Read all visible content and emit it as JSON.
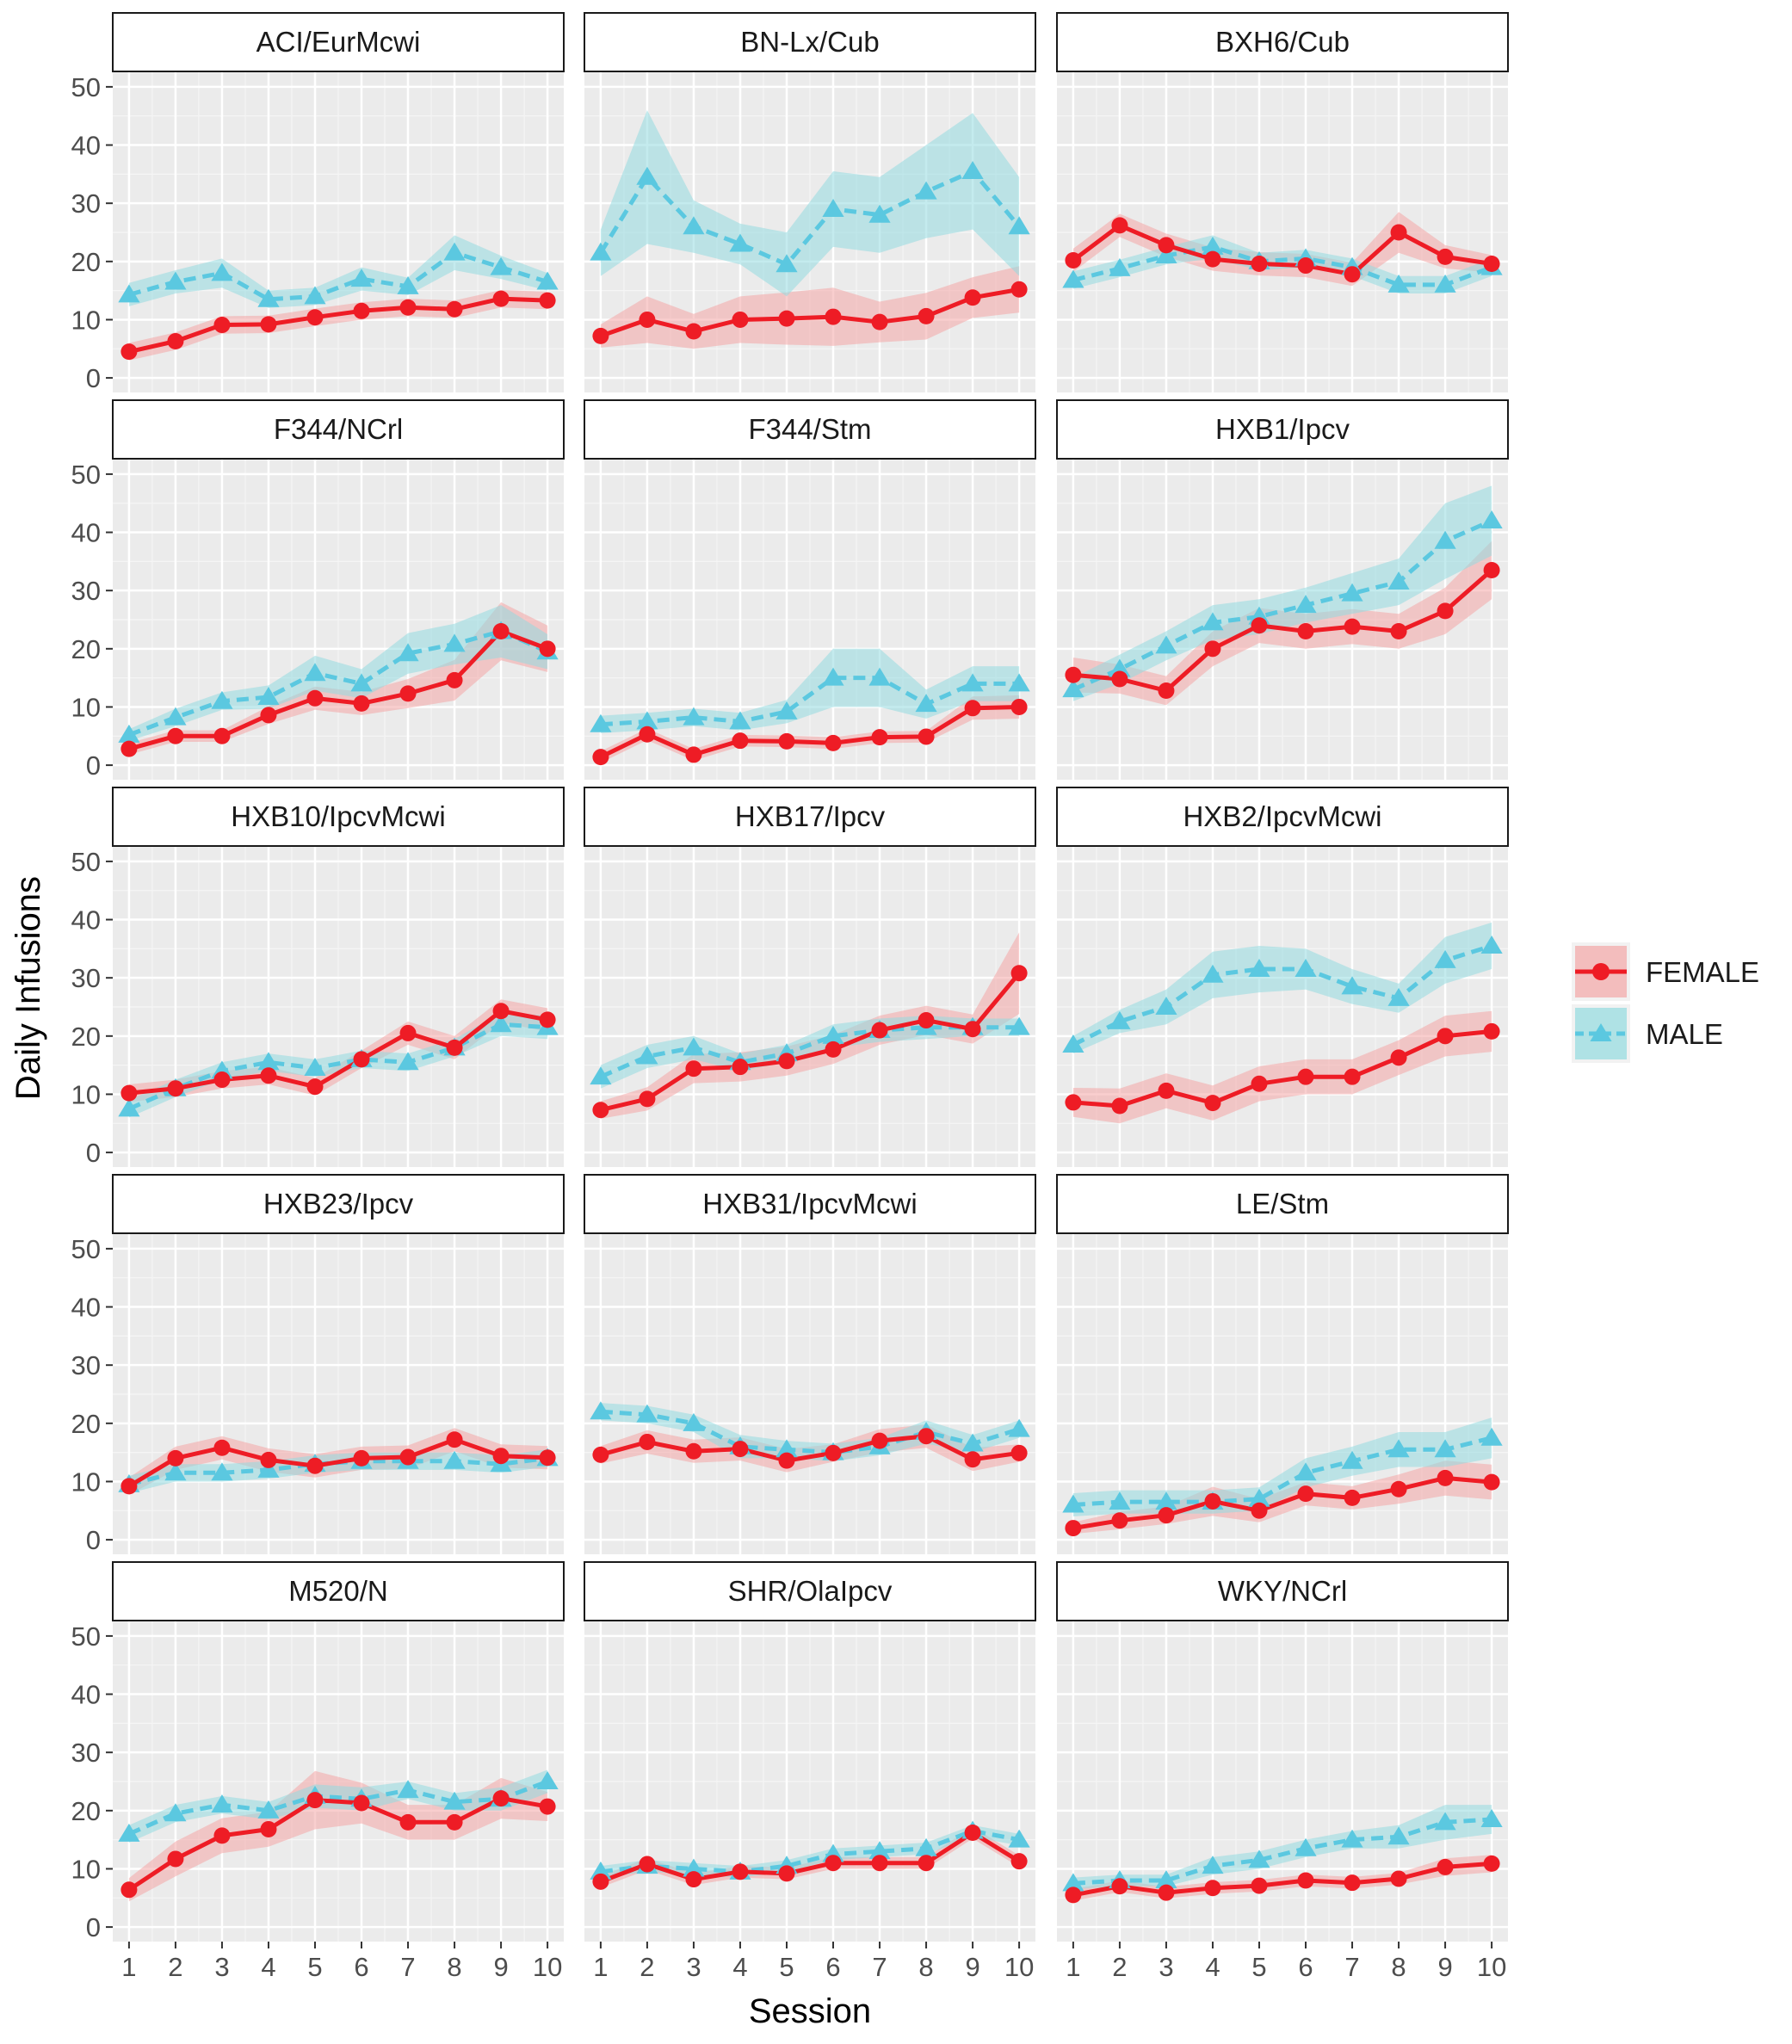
{
  "chart_data": {
    "type": "line",
    "xlabel": "Session",
    "ylabel": "Daily Infusions",
    "x": [
      1,
      2,
      3,
      4,
      5,
      6,
      7,
      8,
      9,
      10
    ],
    "x_tick_labels": [
      "1",
      "2",
      "3",
      "4",
      "5",
      "6",
      "7",
      "8",
      "9",
      "10"
    ],
    "ylim": [
      0,
      50
    ],
    "y_ticks": [
      0,
      10,
      20,
      30,
      40,
      50
    ],
    "y_tick_labels": [
      "0",
      "10",
      "20",
      "30",
      "40",
      "50"
    ],
    "grid": true,
    "legend": {
      "position": "right",
      "entries": [
        {
          "name": "FEMALE",
          "color": "#ee1c25",
          "marker": "circle",
          "line": "solid",
          "ribbon_color": "#f4a6a6"
        },
        {
          "name": "MALE",
          "color": "#5bc8e0",
          "marker": "triangle",
          "line": "dashed",
          "ribbon_color": "#93dbe0"
        }
      ]
    },
    "panels": [
      {
        "strain": "ACI/EurMcwi",
        "female": [
          4.5,
          6.3,
          9.1,
          9.2,
          10.4,
          11.5,
          12.1,
          11.8,
          13.6,
          13.3
        ],
        "female_band": [
          1.5,
          1.5,
          1.5,
          1.5,
          1.5,
          1.5,
          1.5,
          1.5,
          1.5,
          1.5
        ],
        "male": [
          14.3,
          16.5,
          18.0,
          13.5,
          14.0,
          17.0,
          15.7,
          21.5,
          19.0,
          16.5
        ],
        "male_band": [
          2.0,
          2.0,
          2.5,
          1.5,
          1.5,
          2.0,
          1.5,
          3.0,
          2.0,
          1.5
        ]
      },
      {
        "strain": "BN-Lx/Cub",
        "female": [
          7.2,
          10.0,
          8.0,
          10.0,
          10.2,
          10.5,
          9.6,
          10.6,
          13.8,
          15.2
        ],
        "female_band": [
          2.0,
          4.0,
          3.0,
          4.0,
          4.5,
          5.0,
          3.5,
          4.0,
          3.5,
          4.0
        ],
        "male": [
          21.5,
          34.5,
          26.0,
          23.0,
          19.5,
          29.0,
          28.0,
          32.0,
          35.5,
          26.0
        ],
        "male_band": [
          4.0,
          11.5,
          4.5,
          3.5,
          5.5,
          6.5,
          6.5,
          8.0,
          10.0,
          8.5
        ]
      },
      {
        "strain": "BXH6/Cub",
        "female": [
          20.2,
          26.2,
          22.8,
          20.4,
          19.6,
          19.3,
          17.8,
          25.0,
          20.8,
          19.6
        ],
        "female_band": [
          2.0,
          2.0,
          2.0,
          2.0,
          2.0,
          2.0,
          2.0,
          3.5,
          2.0,
          1.5
        ],
        "male": [
          16.8,
          18.8,
          21.0,
          22.5,
          20.0,
          20.5,
          19.0,
          16.0,
          16.0,
          19.0
        ],
        "male_band": [
          1.5,
          1.5,
          1.5,
          2.0,
          1.5,
          1.5,
          1.5,
          1.5,
          1.5,
          1.5
        ]
      },
      {
        "strain": "F344/NCrl",
        "female": [
          2.8,
          5.0,
          5.0,
          8.6,
          11.5,
          10.6,
          12.3,
          14.6,
          23.0,
          20.0
        ],
        "female_band": [
          1.0,
          1.0,
          1.0,
          1.5,
          2.0,
          2.0,
          2.5,
          3.5,
          5.0,
          4.0
        ],
        "male": [
          5.2,
          8.2,
          11.0,
          11.7,
          15.8,
          14.0,
          19.2,
          20.8,
          23.0,
          19.5
        ],
        "male_band": [
          1.0,
          1.5,
          1.5,
          2.0,
          3.0,
          2.5,
          3.5,
          3.5,
          4.5,
          3.0
        ]
      },
      {
        "strain": "F344/Stm",
        "female": [
          1.4,
          5.3,
          1.8,
          4.2,
          4.1,
          3.8,
          4.8,
          4.9,
          9.8,
          10.0
        ],
        "female_band": [
          1.0,
          1.0,
          1.0,
          1.0,
          1.0,
          1.0,
          1.0,
          1.0,
          2.0,
          2.0
        ],
        "male": [
          7.0,
          7.5,
          8.2,
          7.5,
          9.2,
          15.0,
          15.0,
          10.5,
          14.0,
          14.0
        ],
        "male_band": [
          1.5,
          1.5,
          1.5,
          1.5,
          2.0,
          5.0,
          5.0,
          2.5,
          3.0,
          3.0
        ]
      },
      {
        "strain": "HXB1/Ipcv",
        "female": [
          15.5,
          14.8,
          12.8,
          20.0,
          24.0,
          23.0,
          23.8,
          23.0,
          26.5,
          33.5
        ],
        "female_band": [
          3.0,
          2.5,
          2.5,
          3.0,
          3.0,
          3.0,
          3.0,
          3.0,
          4.0,
          5.0
        ],
        "male": [
          13.0,
          16.5,
          20.5,
          24.5,
          25.5,
          27.5,
          29.5,
          31.5,
          38.5,
          42.0
        ],
        "male_band": [
          2.0,
          2.5,
          2.5,
          3.0,
          3.0,
          3.0,
          3.5,
          4.0,
          6.5,
          6.0
        ]
      },
      {
        "strain": "HXB10/IpcvMcwi",
        "female": [
          10.2,
          11.0,
          12.5,
          13.2,
          11.3,
          16.0,
          20.5,
          18.0,
          24.3,
          22.8
        ],
        "female_band": [
          1.5,
          1.5,
          1.5,
          1.5,
          1.5,
          1.5,
          2.0,
          2.0,
          2.0,
          2.0
        ],
        "male": [
          7.5,
          11.0,
          14.0,
          15.5,
          14.5,
          16.0,
          15.5,
          18.0,
          22.0,
          21.5
        ],
        "male_band": [
          1.5,
          1.5,
          1.5,
          1.5,
          1.5,
          1.5,
          1.5,
          1.5,
          2.0,
          2.0
        ]
      },
      {
        "strain": "HXB17/Ipcv",
        "female": [
          7.3,
          9.2,
          14.4,
          14.7,
          15.7,
          17.7,
          21.0,
          22.7,
          21.2,
          30.8
        ],
        "female_band": [
          1.5,
          2.0,
          2.5,
          2.5,
          2.5,
          2.5,
          2.5,
          2.5,
          2.5,
          7.0
        ],
        "male": [
          13.0,
          16.5,
          18.0,
          15.5,
          17.0,
          20.0,
          21.0,
          21.5,
          21.5,
          21.5
        ],
        "male_band": [
          2.0,
          2.0,
          2.0,
          1.5,
          1.5,
          2.0,
          2.0,
          2.0,
          1.5,
          1.5
        ]
      },
      {
        "strain": "HXB2/IpcvMcwi",
        "female": [
          8.6,
          8.0,
          10.6,
          8.5,
          11.8,
          13.0,
          13.0,
          16.3,
          20.0,
          20.8
        ],
        "female_band": [
          2.5,
          3.0,
          3.0,
          3.0,
          3.0,
          3.0,
          3.0,
          3.0,
          3.5,
          3.5
        ],
        "male": [
          18.5,
          22.5,
          25.0,
          30.5,
          31.5,
          31.5,
          28.5,
          26.5,
          33.0,
          35.5
        ],
        "male_band": [
          1.5,
          2.0,
          3.0,
          4.0,
          4.0,
          3.5,
          3.0,
          2.5,
          4.0,
          4.0
        ]
      },
      {
        "strain": "HXB23/Ipcv",
        "female": [
          9.2,
          14.0,
          15.8,
          13.7,
          12.7,
          14.0,
          14.2,
          17.2,
          14.4,
          14.1
        ],
        "female_band": [
          1.5,
          2.0,
          2.0,
          2.0,
          2.0,
          2.0,
          2.0,
          2.0,
          2.0,
          2.0
        ],
        "male": [
          9.5,
          11.5,
          11.5,
          12.0,
          13.0,
          13.5,
          13.5,
          13.5,
          13.0,
          14.0
        ],
        "male_band": [
          1.5,
          1.5,
          1.5,
          1.5,
          1.5,
          1.5,
          1.5,
          1.5,
          1.5,
          1.5
        ]
      },
      {
        "strain": "HXB31/IpcvMcwi",
        "female": [
          14.6,
          16.8,
          15.2,
          15.6,
          13.6,
          14.9,
          17.0,
          17.8,
          13.8,
          14.9
        ],
        "female_band": [
          1.5,
          2.0,
          2.0,
          2.0,
          2.0,
          1.5,
          2.0,
          2.0,
          2.0,
          1.5
        ],
        "male": [
          22.0,
          21.5,
          20.0,
          16.0,
          15.5,
          15.0,
          16.0,
          18.5,
          16.5,
          19.0
        ],
        "male_band": [
          1.5,
          1.5,
          1.5,
          2.0,
          1.5,
          1.5,
          1.5,
          2.0,
          1.5,
          1.5
        ]
      },
      {
        "strain": "LE/Stm",
        "female": [
          2.0,
          3.3,
          4.2,
          6.6,
          5.0,
          7.9,
          7.2,
          8.7,
          10.6,
          9.9
        ],
        "female_band": [
          1.0,
          1.5,
          1.5,
          2.5,
          2.0,
          2.0,
          2.0,
          2.5,
          3.0,
          3.0
        ],
        "male": [
          6.0,
          6.5,
          6.5,
          6.5,
          7.0,
          11.5,
          13.5,
          15.5,
          15.5,
          17.5
        ],
        "male_band": [
          2.0,
          2.0,
          2.0,
          2.0,
          2.0,
          2.5,
          2.5,
          3.0,
          3.0,
          3.5
        ]
      },
      {
        "strain": "M520/N",
        "female": [
          6.4,
          11.7,
          15.7,
          16.8,
          21.8,
          21.3,
          18.0,
          18.0,
          22.1,
          20.7
        ],
        "female_band": [
          2.0,
          3.0,
          3.0,
          3.0,
          5.0,
          3.5,
          3.0,
          3.0,
          3.5,
          2.5
        ],
        "male": [
          16.0,
          19.5,
          21.0,
          20.0,
          22.5,
          22.0,
          23.5,
          21.5,
          22.0,
          25.0
        ],
        "male_band": [
          1.5,
          1.5,
          1.5,
          1.5,
          2.0,
          2.0,
          1.5,
          1.5,
          2.0,
          2.0
        ]
      },
      {
        "strain": "SHR/OlaIpcv",
        "female": [
          7.8,
          10.8,
          8.2,
          9.5,
          9.2,
          11.0,
          11.0,
          11.0,
          16.2,
          11.3
        ],
        "female_band": [
          1.0,
          1.0,
          1.0,
          1.0,
          1.0,
          1.0,
          1.0,
          1.0,
          1.0,
          1.0
        ],
        "male": [
          9.5,
          10.5,
          10.0,
          9.5,
          10.5,
          12.5,
          13.0,
          13.5,
          16.5,
          15.0
        ],
        "male_band": [
          1.0,
          1.0,
          1.0,
          1.0,
          1.0,
          1.0,
          1.0,
          1.0,
          1.0,
          1.0
        ]
      },
      {
        "strain": "WKY/NCrl",
        "female": [
          5.5,
          7.0,
          5.9,
          6.7,
          7.1,
          8.0,
          7.6,
          8.3,
          10.3,
          10.9
        ],
        "female_band": [
          1.0,
          1.0,
          1.0,
          1.0,
          1.0,
          1.0,
          1.0,
          1.0,
          1.5,
          1.5
        ],
        "male": [
          7.5,
          8.0,
          8.0,
          10.5,
          11.5,
          13.5,
          15.0,
          15.5,
          18.0,
          18.5
        ],
        "male_band": [
          1.0,
          1.0,
          1.0,
          1.5,
          1.5,
          1.5,
          1.5,
          2.0,
          3.0,
          2.5
        ]
      }
    ]
  }
}
